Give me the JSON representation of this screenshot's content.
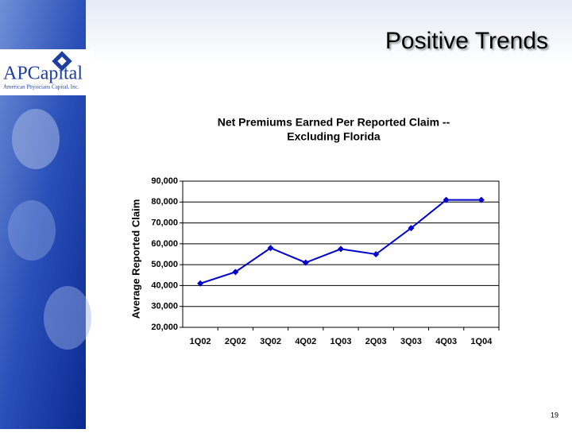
{
  "slide": {
    "title": "Positive Trends",
    "logo_name": "APCapital",
    "logo_tagline": "American Physicians Capital, Inc.",
    "page_number": "19"
  },
  "chart_data": {
    "type": "line",
    "title": [
      "Net Premiums Earned Per Reported Claim --",
      "Excluding Florida"
    ],
    "y_label": "Average Reported Claim",
    "categories": [
      "1Q02",
      "2Q02",
      "3Q02",
      "4Q02",
      "1Q03",
      "2Q03",
      "3Q03",
      "4Q03",
      "1Q04"
    ],
    "series": [
      {
        "name": "Average Reported Claim",
        "color": "#0000cc",
        "values": [
          41000,
          46500,
          58000,
          51000,
          57500,
          55000,
          67500,
          81000,
          81000
        ]
      }
    ],
    "ylim": [
      20000,
      90000
    ],
    "yticks": [
      {
        "value": 20000,
        "label": "20,000"
      },
      {
        "value": 30000,
        "label": "30,000"
      },
      {
        "value": 40000,
        "label": "40,000"
      },
      {
        "value": 50000,
        "label": "50,000"
      },
      {
        "value": 60000,
        "label": "60,000"
      },
      {
        "value": 70000,
        "label": "70,000"
      },
      {
        "value": 80000,
        "label": "80,000"
      },
      {
        "value": 90000,
        "label": "90,000"
      }
    ],
    "grid": true
  }
}
